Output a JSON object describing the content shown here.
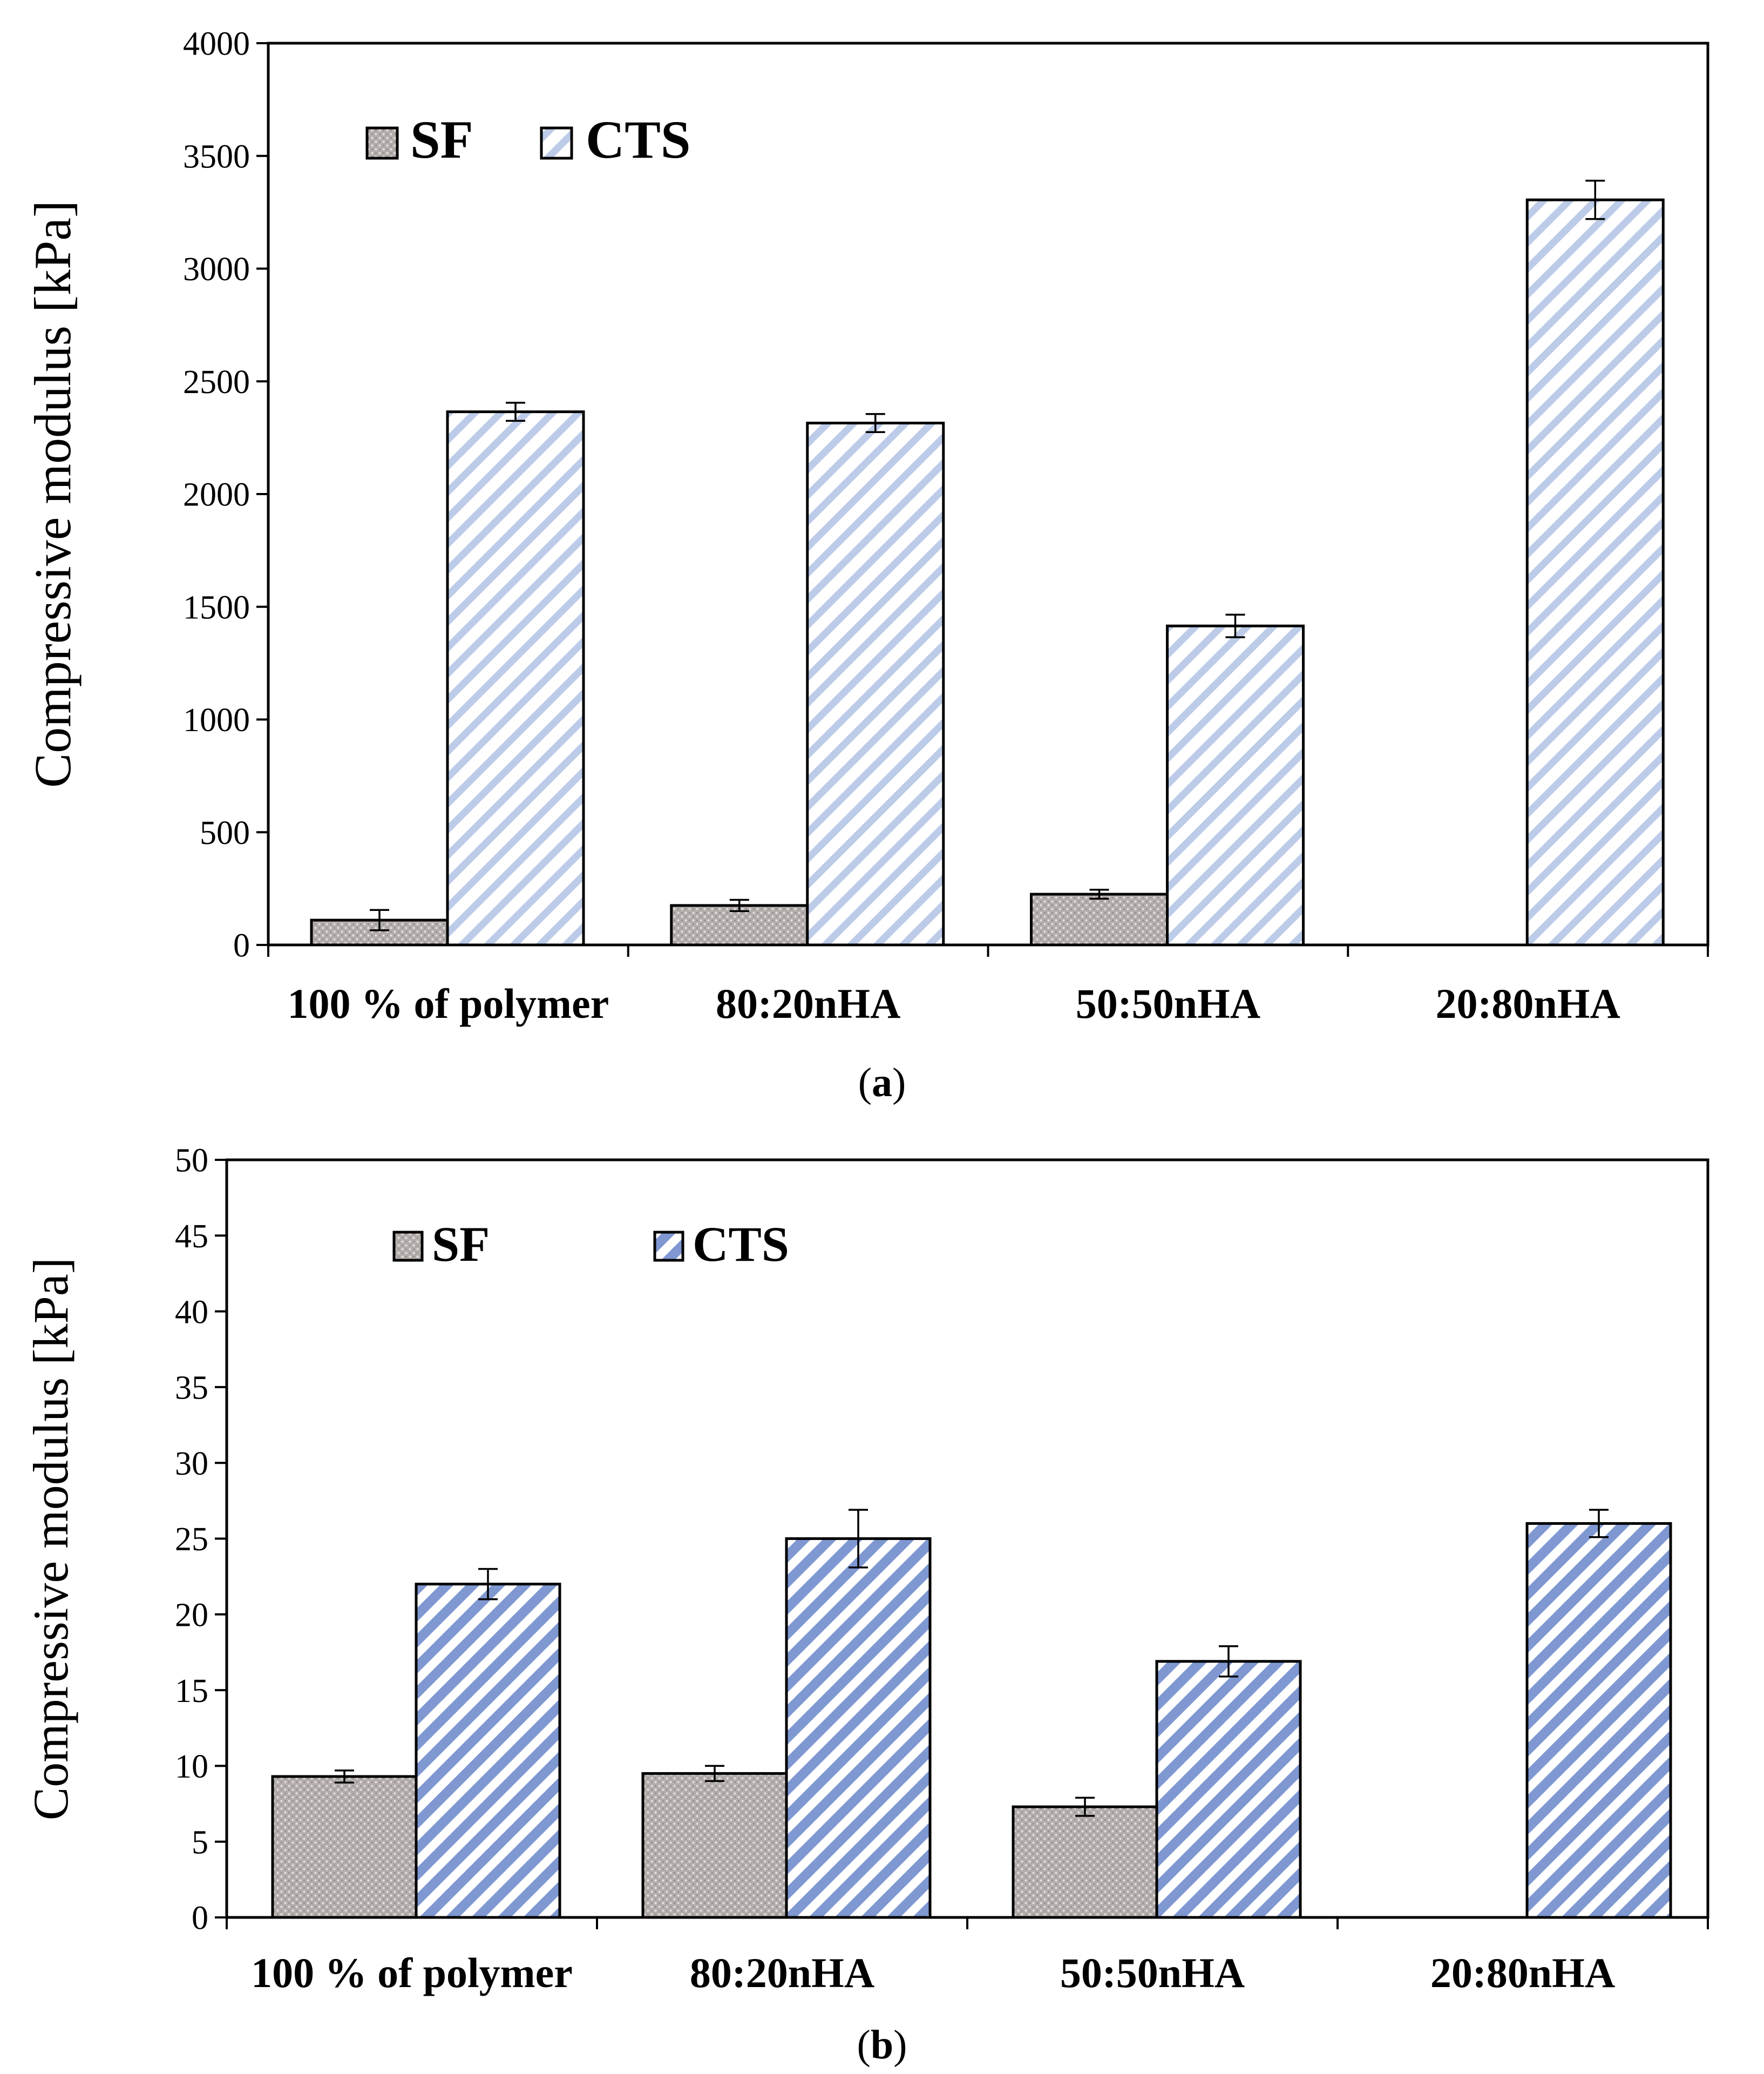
{
  "chart_data": [
    {
      "type": "bar",
      "panel_label": "a",
      "categories": [
        "100 % of polymer",
        "80:20nHA",
        "50:50nHA",
        "20:80nHA"
      ],
      "series": [
        {
          "name": "SF",
          "values": [
            110,
            175,
            225,
            null
          ],
          "errors": [
            45,
            25,
            20,
            null
          ],
          "color": "#b0aaa8",
          "pattern": "dots"
        },
        {
          "name": "CTS",
          "values": [
            2365,
            2315,
            1415,
            3305
          ],
          "errors": [
            40,
            40,
            50,
            85
          ],
          "color": "#c5d1ea",
          "pattern": "light-diagonal"
        }
      ],
      "ylabel": "Compressive modulus [kPa]",
      "xlabel": "",
      "ylim": [
        0,
        4000
      ],
      "yticks": [
        0,
        500,
        1000,
        1500,
        2000,
        2500,
        3000,
        3500,
        4000
      ],
      "grid": false,
      "legend_position": "top-left"
    },
    {
      "type": "bar",
      "panel_label": "b",
      "categories": [
        "100 % of polymer",
        "80:20nHA",
        "50:50nHA",
        "20:80nHA"
      ],
      "series": [
        {
          "name": "SF",
          "values": [
            9.3,
            9.5,
            7.3,
            null
          ],
          "errors": [
            0.4,
            0.5,
            0.6,
            null
          ],
          "color": "#b0aaa8",
          "pattern": "dots"
        },
        {
          "name": "CTS",
          "values": [
            22,
            25,
            16.9,
            26
          ],
          "errors": [
            1.0,
            1.9,
            1.0,
            0.9
          ],
          "color": "#8fa4d6",
          "pattern": "dense-diagonal"
        }
      ],
      "ylabel": "Compressive modulus [kPa]",
      "xlabel": "",
      "ylim": [
        0,
        50
      ],
      "yticks": [
        0,
        5,
        10,
        15,
        20,
        25,
        30,
        35,
        40,
        45,
        50
      ],
      "grid": false,
      "legend_position": "top-left"
    }
  ]
}
